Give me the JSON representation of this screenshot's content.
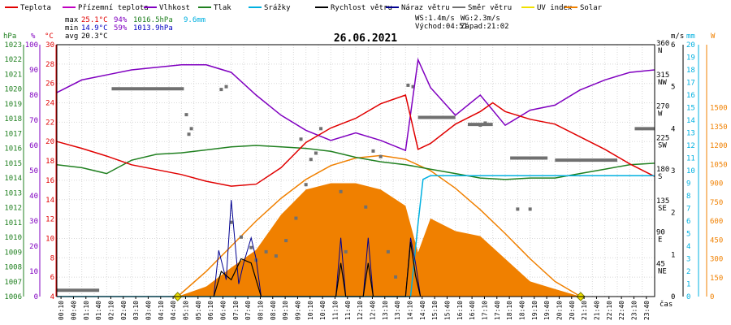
{
  "chart_data": {
    "type": "line",
    "title": "26.06.2021",
    "x_unit_label": "čas",
    "legend": [
      {
        "name": "Teplota",
        "color": "#e00000"
      },
      {
        "name": "Přízemní teplota",
        "color": "#c000c0"
      },
      {
        "name": "Vlhkost",
        "color": "#8000c0"
      },
      {
        "name": "Tlak",
        "color": "#208020"
      },
      {
        "name": "Srážky",
        "color": "#00b0e0"
      },
      {
        "name": "Rychlost větru",
        "color": "#000000"
      },
      {
        "name": "Náraz větru",
        "color": "#000090"
      },
      {
        "name": "Směr větru",
        "color": "#707070"
      },
      {
        "name": "UV index",
        "color": "#f0e000"
      },
      {
        "name": "Solar",
        "color": "#f08000"
      }
    ],
    "stats": {
      "max_label": "max",
      "max_temp": "25.1°C",
      "max_hum": "94%",
      "max_press": "1016.5hPa",
      "rain": "9.6mm",
      "min_label": "min",
      "min_temp": "14.9°C",
      "min_hum": "59%",
      "min_press": "1013.9hPa",
      "avg_label": "avg",
      "avg_temp": "20.3°C",
      "ws": "WS:1.4m/s",
      "wg": "WG:2.3m/s",
      "sunrise": "Východ:04:51",
      "sunset": "Západ:21:02"
    },
    "axes": {
      "hpa": {
        "unit": "hPa",
        "min": 1006,
        "max": 1023,
        "ticks": [
          "1023",
          "1022",
          "1021",
          "1020",
          "1019",
          "1018",
          "1017",
          "1016",
          "1015",
          "1014",
          "1013",
          "1012",
          "1011",
          "1010",
          "1009",
          "1008",
          "1007",
          "1006"
        ]
      },
      "pct": {
        "unit": "%",
        "min": 0,
        "max": 100,
        "ticks": [
          "100",
          "90",
          "80",
          "70",
          "60",
          "50",
          "40",
          "30",
          "20",
          "10",
          "0"
        ]
      },
      "temp": {
        "unit": "°C",
        "min": 4,
        "max": 30,
        "ticks": [
          "30",
          "28",
          "26",
          "24",
          "22",
          "20",
          "18",
          "16",
          "14",
          "12",
          "10",
          "8",
          "6",
          "4"
        ]
      },
      "deg": {
        "min": 0,
        "max": 360,
        "ticks": [
          "360",
          "315",
          "270",
          "225",
          "180",
          "135",
          "90",
          "45"
        ],
        "dirs": [
          "N",
          "NW",
          "W",
          "SW",
          "S",
          "SE",
          "E",
          "NE"
        ]
      },
      "ms": {
        "unit": "m/s",
        "min": 0,
        "max": 6,
        "ticks": [
          "6",
          "5",
          "4",
          "3",
          "2",
          "1",
          "0"
        ]
      },
      "mm": {
        "unit": "mm",
        "min": 0,
        "max": 20,
        "ticks": [
          "20",
          "19",
          "18",
          "17",
          "16",
          "15",
          "14",
          "13",
          "12",
          "11",
          "10",
          "9",
          "8",
          "7",
          "6",
          "5",
          "4",
          "3",
          "2",
          "1",
          "0"
        ]
      },
      "w": {
        "unit": "W",
        "min": 0,
        "max": 2000,
        "ticks": [
          "1500",
          "1350",
          "1200",
          "1050",
          "900",
          "750",
          "600",
          "450",
          "300",
          "150",
          "0"
        ]
      }
    },
    "x_ticks": [
      "00:10",
      "00:40",
      "01:10",
      "01:40",
      "02:10",
      "02:40",
      "03:10",
      "03:40",
      "04:10",
      "04:40",
      "05:10",
      "05:40",
      "06:10",
      "06:40",
      "07:10",
      "07:40",
      "08:10",
      "08:40",
      "09:10",
      "09:40",
      "10:10",
      "10:40",
      "11:10",
      "11:40",
      "12:10",
      "12:40",
      "13:10",
      "13:40",
      "14:10",
      "14:40",
      "15:10",
      "15:40",
      "16:10",
      "16:40",
      "17:10",
      "17:40",
      "18:10",
      "18:40",
      "19:10",
      "19:40",
      "20:10",
      "20:40",
      "21:10",
      "21:40",
      "22:10",
      "22:40",
      "23:10",
      "23:40"
    ],
    "series": {
      "temperature": {
        "name": "Teplota",
        "unit": "°C",
        "t": [
          0,
          1,
          2,
          3,
          4,
          5,
          6,
          7,
          8,
          9,
          10,
          11,
          12,
          13,
          14,
          14.5,
          15,
          16,
          17,
          17.5,
          18,
          19,
          20,
          21,
          22,
          23,
          24
        ],
        "v": [
          20,
          19.3,
          18.5,
          17.6,
          17.1,
          16.6,
          15.9,
          15.4,
          15.6,
          17.3,
          19.9,
          21.4,
          22.4,
          23.9,
          24.8,
          19.2,
          19.8,
          21.8,
          23.1,
          24,
          23.1,
          22.3,
          21.8,
          20.5,
          19.2,
          17.7,
          16.4
        ]
      },
      "humidity": {
        "name": "Vlhkost",
        "unit": "%",
        "t": [
          0,
          1,
          2,
          3,
          4,
          5,
          6,
          7,
          8,
          9,
          10,
          11,
          12,
          13,
          14,
          14.5,
          15,
          16,
          17,
          18,
          19,
          20,
          21,
          22,
          23,
          24
        ],
        "v": [
          81,
          86,
          88,
          90,
          91,
          92,
          92,
          89,
          80,
          72,
          66,
          62,
          65,
          62,
          58,
          94,
          83,
          72,
          80,
          68,
          74,
          76,
          82,
          86,
          89,
          90
        ]
      },
      "pressure": {
        "name": "Tlak",
        "unit": "hPa",
        "t": [
          0,
          1,
          2,
          3,
          4,
          5,
          6,
          7,
          8,
          9,
          10,
          11,
          12,
          13,
          14,
          15,
          16,
          17,
          18,
          19,
          20,
          21,
          22,
          23,
          24
        ],
        "v": [
          1014.9,
          1014.7,
          1014.3,
          1015.2,
          1015.6,
          1015.7,
          1015.9,
          1016.1,
          1016.2,
          1016.1,
          1016.0,
          1015.8,
          1015.4,
          1015.1,
          1014.9,
          1014.6,
          1014.3,
          1014.0,
          1013.9,
          1014.0,
          1014.0,
          1014.3,
          1014.6,
          1014.9,
          1015.0
        ]
      },
      "rain": {
        "name": "Srážky",
        "unit": "mm",
        "t": [
          0,
          14.2,
          14.5,
          14.7,
          15,
          24
        ],
        "v": [
          0,
          0,
          5.8,
          9.3,
          9.6,
          9.6
        ]
      },
      "solar": {
        "name": "Solar",
        "unit": "W",
        "t": [
          4.85,
          6,
          7,
          8,
          9,
          10,
          11,
          12,
          13,
          14,
          14.5,
          15,
          16,
          17,
          18,
          19,
          20,
          21.03
        ],
        "v": [
          0,
          80,
          230,
          370,
          650,
          850,
          900,
          900,
          850,
          720,
          350,
          620,
          520,
          480,
          300,
          120,
          60,
          0
        ]
      },
      "solar_theoretical": {
        "name": "Solar",
        "unit": "W",
        "t": [
          4.85,
          6,
          7,
          8,
          9,
          10,
          11,
          12,
          13,
          14,
          15,
          16,
          17,
          18,
          19,
          20,
          21.03
        ],
        "v": [
          0,
          200,
          400,
          600,
          780,
          930,
          1040,
          1100,
          1120,
          1090,
          1000,
          860,
          690,
          500,
          300,
          120,
          0
        ]
      },
      "wind_gust": {
        "name": "Náraz větru",
        "unit": "m/s",
        "t": [
          6.3,
          6.5,
          6.8,
          7,
          7.3,
          7.5,
          7.8,
          8,
          8.2,
          11.2,
          11.4,
          11.6,
          12.3,
          12.5,
          12.7,
          14,
          14.2,
          14.4,
          14.6
        ],
        "v": [
          0,
          1.1,
          0.4,
          2.3,
          0.3,
          0.8,
          1.4,
          0.9,
          0,
          0,
          1.4,
          0,
          0,
          1.4,
          0,
          0,
          1.4,
          0.8,
          0
        ]
      },
      "wind_speed": {
        "name": "Rychlost větru",
        "unit": "m/s",
        "t": [
          6.3,
          6.6,
          7,
          7.4,
          7.8,
          8.2,
          11.2,
          11.4,
          11.6,
          12.3,
          12.5,
          12.7,
          14,
          14.2,
          14.4,
          14.6
        ],
        "v": [
          0,
          0.6,
          0.4,
          0.9,
          0.8,
          0,
          0,
          0.8,
          0,
          0,
          0.8,
          0,
          0,
          1.3,
          0.5,
          0
        ]
      },
      "wind_dir": {
        "name": "Směr větru",
        "unit": "°",
        "segments": [
          [
            0,
            1.7,
            9
          ],
          [
            2.2,
            5.1,
            297
          ],
          [
            14.5,
            16,
            256
          ],
          [
            16.5,
            17.5,
            246
          ],
          [
            18.2,
            19.7,
            198
          ],
          [
            20,
            22.5,
            195
          ],
          [
            23.2,
            24,
            240
          ]
        ],
        "points": [
          [
            5.2,
            260
          ],
          [
            5.3,
            232
          ],
          [
            5.4,
            240
          ],
          [
            6.6,
            296
          ],
          [
            6.8,
            300
          ],
          [
            7,
            106
          ],
          [
            7.4,
            85
          ],
          [
            7.8,
            70
          ],
          [
            8,
            52
          ],
          [
            8.4,
            64
          ],
          [
            8.8,
            58
          ],
          [
            9.2,
            80
          ],
          [
            9.6,
            112
          ],
          [
            9.8,
            225
          ],
          [
            10,
            160
          ],
          [
            10.2,
            196
          ],
          [
            10.4,
            205
          ],
          [
            10.6,
            240
          ],
          [
            11.4,
            150
          ],
          [
            11.6,
            64
          ],
          [
            12.4,
            128
          ],
          [
            12.7,
            208
          ],
          [
            13,
            200
          ],
          [
            13.3,
            64
          ],
          [
            13.6,
            28
          ],
          [
            14.1,
            302
          ],
          [
            14.3,
            300
          ],
          [
            17,
            245
          ],
          [
            17.2,
            248
          ],
          [
            18.5,
            125
          ],
          [
            19,
            125
          ]
        ]
      },
      "uv": {
        "name": "UV index",
        "markers": [
          4.85,
          21.03
        ]
      }
    }
  }
}
